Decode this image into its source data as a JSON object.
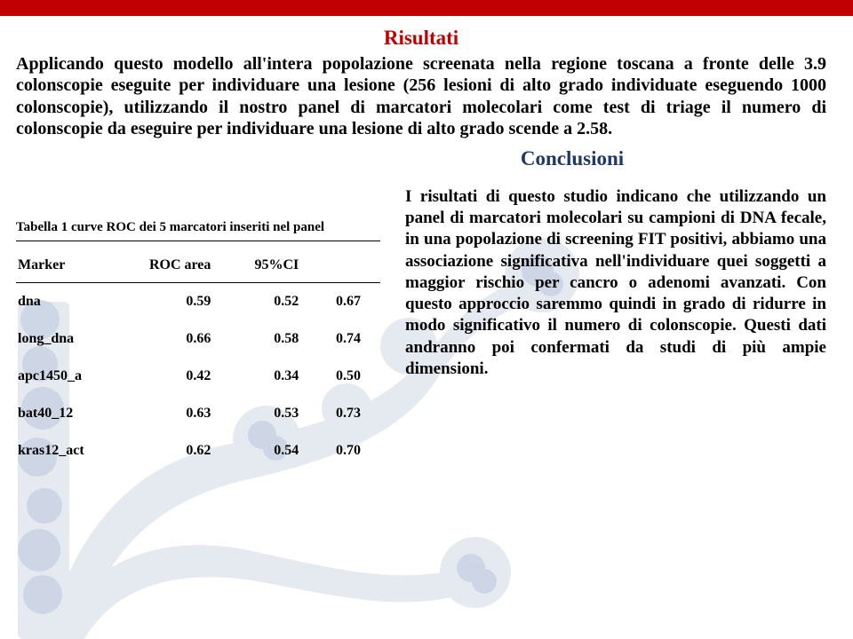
{
  "colors": {
    "accent_red": "#c00000",
    "heading_blue": "#1f3864",
    "text_black": "#000000",
    "deco_soft": "#dfe5ee",
    "deco_mid": "#c5cee0"
  },
  "headings": {
    "risultati": "Risultati",
    "conclusioni": "Conclusioni"
  },
  "intro": "Applicando questo modello all'intera popolazione screenata nella regione toscana a fronte delle 3.9 colonscopie eseguite per individuare una lesione (256 lesioni di alto grado individuate eseguendo 1000 colonscopie), utilizzando il nostro panel di marcatori molecolari come test di triage il numero di colonscopie da eseguire per individuare una lesione di alto grado scende a 2.58.",
  "table": {
    "caption": "Tabella 1 curve ROC dei 5 marcatori inseriti nel panel",
    "columns": [
      "Marker",
      "ROC area",
      "95%CI",
      ""
    ],
    "rows": [
      [
        "dna",
        "0.59",
        "0.52",
        "0.67"
      ],
      [
        "long_dna",
        "0.66",
        "0.58",
        "0.74"
      ],
      [
        "apc1450_a",
        "0.42",
        "0.34",
        "0.50"
      ],
      [
        "bat40_12",
        "0.63",
        "0.53",
        "0.73"
      ],
      [
        "kras12_act",
        "0.62",
        "0.54",
        "0.70"
      ]
    ]
  },
  "conclusion": "I risultati di questo studio indicano che utilizzando un panel di marcatori molecolari su campioni di DNA fecale, in una popolazione di screening FIT positivi, abbiamo una associazione significativa nell'individuare quei soggetti a maggior rischio per cancro o adenomi avanzati. Con questo approccio saremmo quindi in grado di ridurre in modo significativo il numero di colonscopie. Questi dati andranno poi confermati da studi di più ampie dimensioni."
}
